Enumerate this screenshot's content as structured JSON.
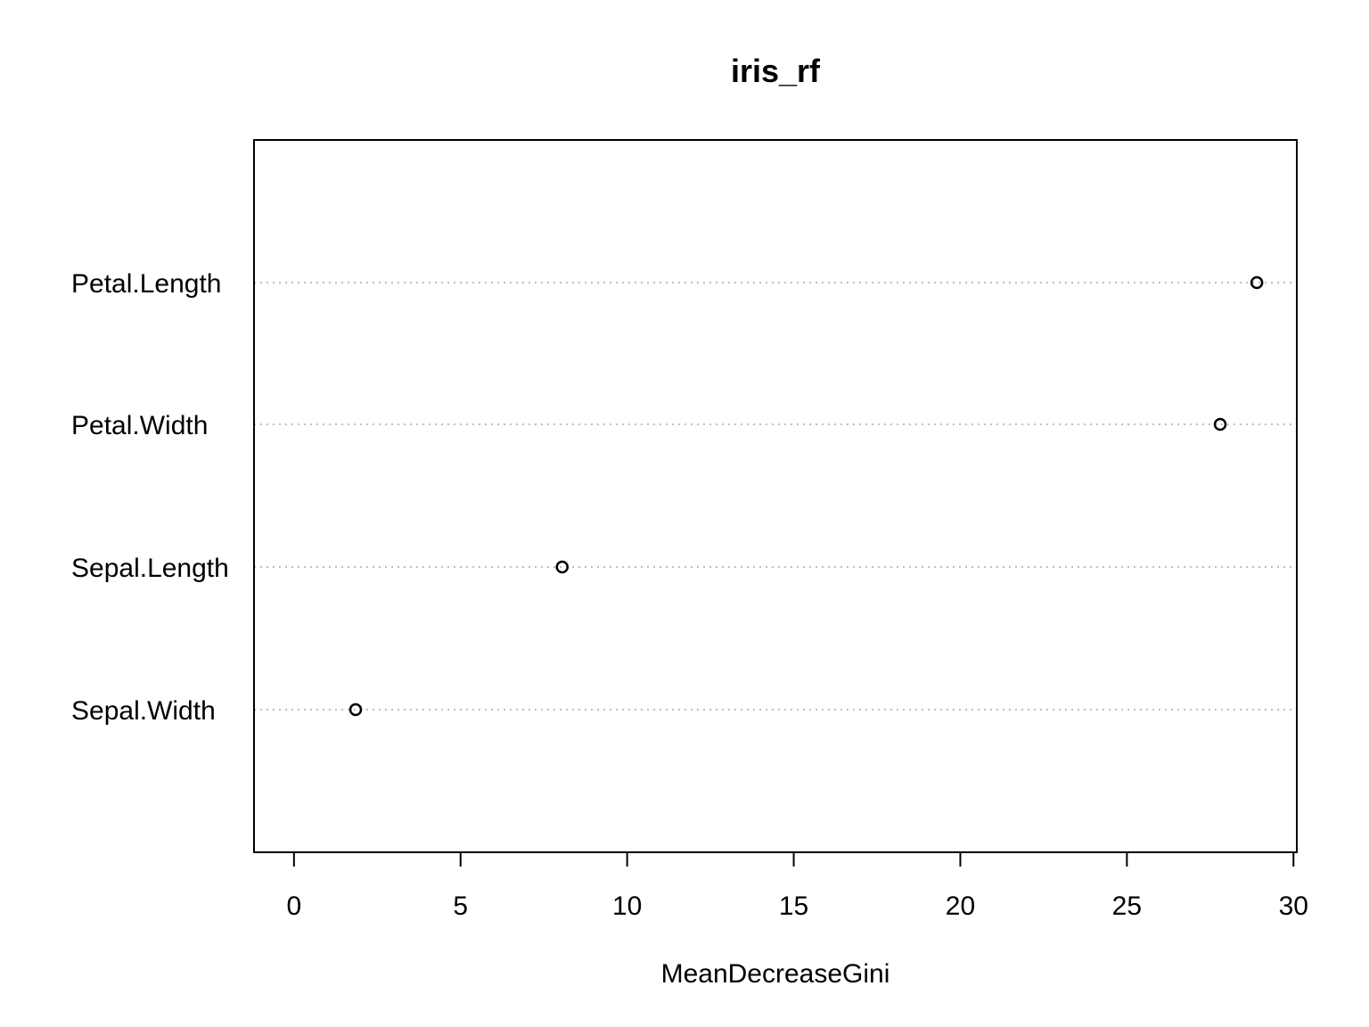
{
  "chart_data": {
    "type": "scatter",
    "title": "iris_rf",
    "xlabel": "MeanDecreaseGini",
    "ylabel": "",
    "categories": [
      "Petal.Length",
      "Petal.Width",
      "Sepal.Length",
      "Sepal.Width"
    ],
    "values": [
      28.9,
      27.8,
      8.05,
      1.85
    ],
    "xlim": [
      -1.2,
      30.1
    ],
    "x_ticks": [
      0,
      5,
      10,
      15,
      20,
      25,
      30
    ],
    "x_tick_labels": [
      "0",
      "5",
      "10",
      "15",
      "20",
      "25",
      "30"
    ],
    "grid": "dotted horizontal lines per category",
    "legend": "none",
    "colors": {
      "point_stroke": "#000000",
      "grid_line": "#bebebe",
      "axis": "#000000"
    },
    "marker": "open-circle"
  }
}
